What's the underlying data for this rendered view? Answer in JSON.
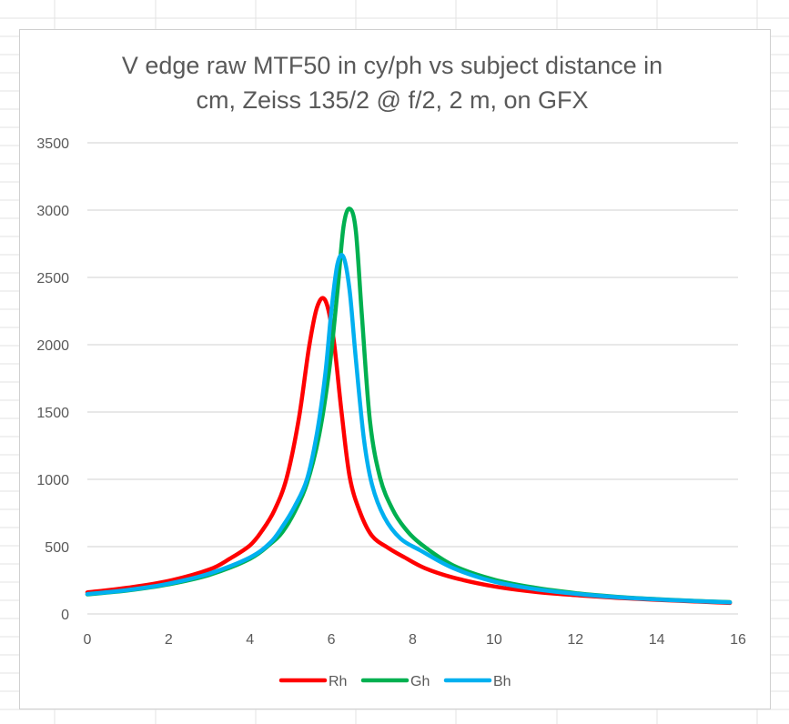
{
  "colors": {
    "gridline": "#d9d9d9",
    "sheet_grid": "#e3e3e3",
    "text": "#595959",
    "Rh": "#ff0000",
    "Gh": "#00b050",
    "Bh": "#00b0f0"
  },
  "chart_data": {
    "type": "line",
    "title_lines": [
      "V edge raw MTF50 in cy/ph vs subject distance in",
      "cm, Zeiss 135/2 @ f/2, 2 m, on GFX"
    ],
    "xlabel": "",
    "ylabel": "",
    "xlim": [
      0,
      16
    ],
    "ylim": [
      0,
      3500
    ],
    "xticks": [
      0,
      2,
      4,
      6,
      8,
      10,
      12,
      14,
      16
    ],
    "yticks": [
      0,
      500,
      1000,
      1500,
      2000,
      2500,
      3000,
      3500
    ],
    "grid": "horizontal",
    "legend_position": "bottom",
    "series": [
      {
        "name": "Rh",
        "color": "#ff0000",
        "x": [
          0,
          1,
          2,
          3,
          3.5,
          4,
          4.3,
          4.6,
          4.9,
          5.2,
          5.45,
          5.65,
          5.85,
          6.05,
          6.25,
          6.45,
          6.7,
          7.0,
          7.4,
          7.8,
          8.3,
          9,
          10,
          11,
          12,
          13,
          14,
          15,
          15.8
        ],
        "y": [
          160,
          195,
          245,
          330,
          410,
          510,
          620,
          770,
          1010,
          1450,
          1980,
          2280,
          2330,
          2050,
          1500,
          1020,
          760,
          580,
          490,
          420,
          340,
          270,
          205,
          165,
          140,
          120,
          105,
          92,
          82
        ]
      },
      {
        "name": "Gh",
        "color": "#00b050",
        "x": [
          0,
          1,
          2,
          3,
          4,
          4.5,
          4.8,
          5.1,
          5.4,
          5.7,
          5.95,
          6.15,
          6.3,
          6.45,
          6.6,
          6.75,
          6.95,
          7.2,
          7.5,
          7.8,
          8.2,
          9,
          10,
          11,
          12,
          13,
          14,
          15,
          15.8
        ],
        "y": [
          145,
          175,
          220,
          290,
          410,
          520,
          610,
          760,
          970,
          1330,
          1820,
          2400,
          2880,
          3010,
          2850,
          2220,
          1430,
          1010,
          780,
          640,
          520,
          360,
          255,
          195,
          155,
          128,
          110,
          96,
          88
        ]
      },
      {
        "name": "Bh",
        "color": "#00b0f0",
        "x": [
          0,
          1,
          2,
          3,
          4,
          4.5,
          4.8,
          5.1,
          5.4,
          5.65,
          5.85,
          6.0,
          6.15,
          6.3,
          6.45,
          6.6,
          6.8,
          7.0,
          7.3,
          7.7,
          8.2,
          9,
          10,
          11,
          12,
          13,
          14,
          15,
          15.8
        ],
        "y": [
          148,
          178,
          225,
          300,
          420,
          530,
          650,
          800,
          1000,
          1350,
          1780,
          2250,
          2600,
          2650,
          2400,
          1900,
          1300,
          960,
          720,
          560,
          470,
          340,
          240,
          185,
          150,
          125,
          108,
          95,
          86
        ]
      }
    ]
  }
}
